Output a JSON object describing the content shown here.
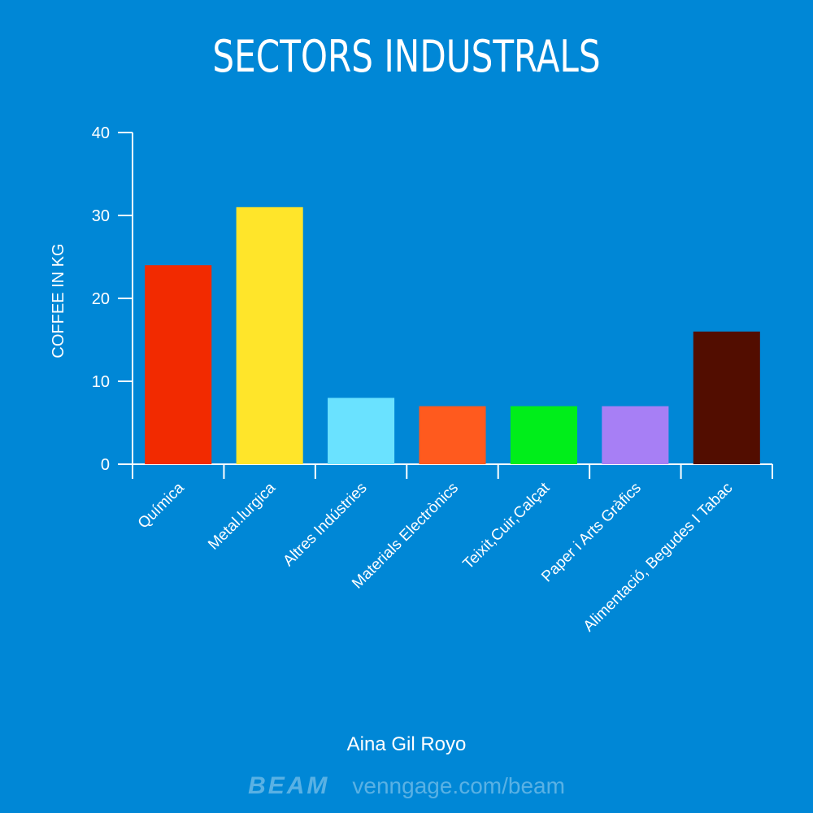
{
  "chart_data": {
    "type": "bar",
    "title": "SECTORS INDUSTRALS",
    "xlabel": "",
    "ylabel": "COFFEE IN KG",
    "ylim": [
      0,
      40
    ],
    "yticks": [
      0,
      10,
      20,
      30,
      40
    ],
    "categories": [
      "Química",
      "Metal.lurgica",
      "Altres Indústries",
      "Materials Electrònics",
      "Teixit,Cuir,Calçat",
      "Paper i Arts Gràfics",
      "Alimentació, Begudes I Tabac"
    ],
    "values": [
      24,
      31,
      8,
      7,
      7,
      7,
      16
    ],
    "colors": [
      "#f22a00",
      "#ffe52a",
      "#6ae2ff",
      "#ff5a1e",
      "#00ee1a",
      "#a77ff5",
      "#520d00"
    ]
  },
  "author": "Aina Gil Royo",
  "footer": {
    "brand": "BEAM",
    "link": "venngage.com/beam"
  },
  "colors": {
    "background": "#0087d6",
    "axis": "#ffffff"
  }
}
